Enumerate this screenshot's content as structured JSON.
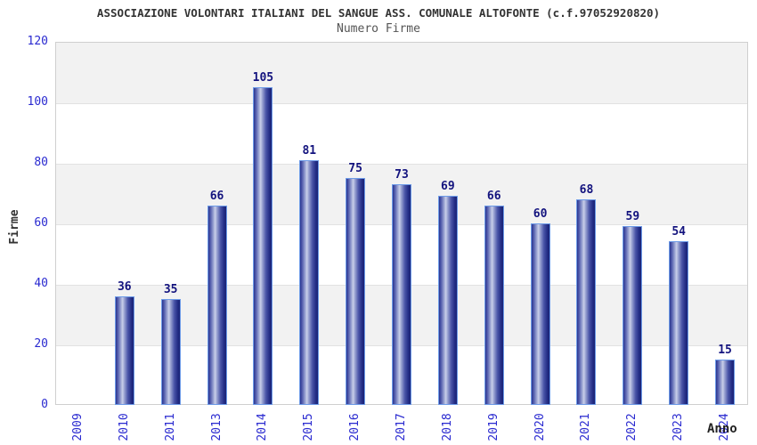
{
  "header": {
    "title": "ASSOCIAZIONE VOLONTARI ITALIANI DEL SANGUE ASS. COMUNALE ALTOFONTE (c.f.97052920820)",
    "subtitle": "Numero Firme"
  },
  "chart_data": {
    "type": "bar",
    "title": "ASSOCIAZIONE VOLONTARI ITALIANI DEL SANGUE ASS. COMUNALE ALTOFONTE (c.f.97052920820)",
    "subtitle": "Numero Firme",
    "xlabel": "Anno",
    "ylabel": "Firme",
    "categories": [
      "2009",
      "2010",
      "2011",
      "2013",
      "2014",
      "2015",
      "2016",
      "2017",
      "2018",
      "2019",
      "2020",
      "2021",
      "2022",
      "2023",
      "2024"
    ],
    "values": [
      null,
      36,
      35,
      66,
      105,
      81,
      75,
      73,
      69,
      66,
      60,
      68,
      59,
      54,
      15
    ],
    "ylim": [
      0,
      120
    ],
    "y_ticks": [
      0,
      20,
      40,
      60,
      80,
      100,
      120
    ],
    "grid": "horizontal alternating bands, light gray",
    "legend": "none",
    "colors": {
      "bar_dark": "#1a2375",
      "bar_mid": "#555fae",
      "bar_highlight": "#c9cfe9",
      "bar_border": "#6d9be8",
      "tick_label": "#2a2ad0",
      "value_label": "#13137e",
      "title_text": "#333333",
      "subtitle_text": "#555555",
      "band_gray": "#f2f2f2",
      "plot_border": "#cfcfcf"
    }
  }
}
